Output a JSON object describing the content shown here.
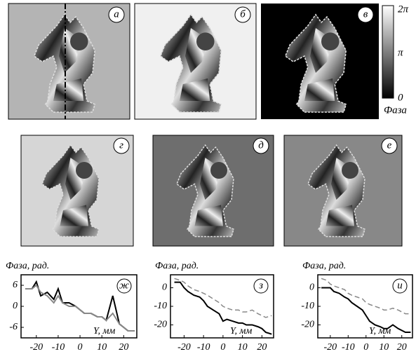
{
  "panels": [
    {
      "label": "а"
    },
    {
      "label": "б"
    },
    {
      "label": "в"
    },
    {
      "label": "г"
    },
    {
      "label": "д"
    },
    {
      "label": "е"
    }
  ],
  "colorbar": {
    "labels": [
      "2π",
      "π",
      "0"
    ],
    "title": "Фаза"
  },
  "chart_data": [
    {
      "type": "line",
      "annotation": "ж",
      "ylabel": "Фаза, рад.",
      "xlabel": "Y, мм",
      "x": [
        -25,
        -22,
        -20,
        -18,
        -15,
        -12,
        -10,
        -8,
        -5,
        -2,
        0,
        2,
        5,
        8,
        10,
        12,
        15,
        18,
        20,
        22,
        25
      ],
      "xlim": [
        -27,
        26
      ],
      "xticks": [
        -20,
        -10,
        0,
        10,
        20
      ],
      "ylim": [
        -9,
        9
      ],
      "yticks": [
        6,
        0,
        -6
      ],
      "series": [
        {
          "color": "#000000",
          "dash": false,
          "values": [
            5,
            5,
            7,
            3,
            4,
            2,
            5,
            1,
            1,
            0,
            -1,
            -2,
            -2,
            -3,
            -3,
            -4,
            3,
            -5,
            -6,
            -7,
            -7
          ]
        },
        {
          "color": "#888888",
          "dash": false,
          "values": [
            5,
            5,
            6,
            4,
            3,
            1,
            3,
            1,
            0,
            0,
            -1,
            -2,
            -2,
            -3,
            -3,
            -4,
            -2,
            -5,
            -6,
            -7,
            -7
          ]
        }
      ]
    },
    {
      "type": "line",
      "annotation": "з",
      "ylabel": "Фаза, рад.",
      "xlabel": "Y, мм",
      "x": [
        -25,
        -22,
        -20,
        -18,
        -15,
        -12,
        -10,
        -8,
        -5,
        -2,
        0,
        2,
        5,
        8,
        10,
        12,
        15,
        18,
        20,
        22,
        25
      ],
      "xlim": [
        -27,
        26
      ],
      "xticks": [
        -20,
        -10,
        0,
        10,
        20
      ],
      "ylim": [
        -27,
        7
      ],
      "yticks": [
        0,
        -10,
        -20
      ],
      "series": [
        {
          "color": "#000000",
          "dash": false,
          "values": [
            3,
            3,
            0,
            -2,
            -4,
            -5,
            -7,
            -10,
            -12,
            -14,
            -18,
            -17,
            -18,
            -19,
            -19,
            -20,
            -20,
            -21,
            -22,
            -24,
            -25
          ]
        },
        {
          "color": "#888888",
          "dash": true,
          "values": [
            5,
            4,
            3,
            1,
            -1,
            -2,
            -3,
            -4,
            -6,
            -8,
            -10,
            -11,
            -12,
            -12,
            -13,
            -13,
            -12,
            -14,
            -15,
            -16,
            -15
          ]
        }
      ]
    },
    {
      "type": "line",
      "annotation": "и",
      "ylabel": "Фаза, рад.",
      "xlabel": "Y, мм",
      "x": [
        -25,
        -22,
        -20,
        -18,
        -15,
        -12,
        -10,
        -8,
        -5,
        -2,
        0,
        2,
        5,
        8,
        10,
        12,
        15,
        18,
        20,
        22,
        25
      ],
      "xlim": [
        -27,
        26
      ],
      "xticks": [
        -20,
        -10,
        0,
        10,
        20
      ],
      "ylim": [
        -27,
        7
      ],
      "yticks": [
        0,
        -10,
        -20
      ],
      "series": [
        {
          "color": "#000000",
          "dash": false,
          "values": [
            0,
            0,
            0,
            -2,
            -3,
            -5,
            -6,
            -8,
            -10,
            -12,
            -15,
            -18,
            -20,
            -21,
            -22,
            -22,
            -20,
            -22,
            -23,
            -24,
            -24
          ]
        },
        {
          "color": "#888888",
          "dash": true,
          "values": [
            5,
            4,
            2,
            1,
            0,
            -1,
            -3,
            -4,
            -5,
            -6,
            -8,
            -9,
            -10,
            -11,
            -12,
            -12,
            -11,
            -12,
            -13,
            -14,
            -14
          ]
        }
      ]
    }
  ]
}
